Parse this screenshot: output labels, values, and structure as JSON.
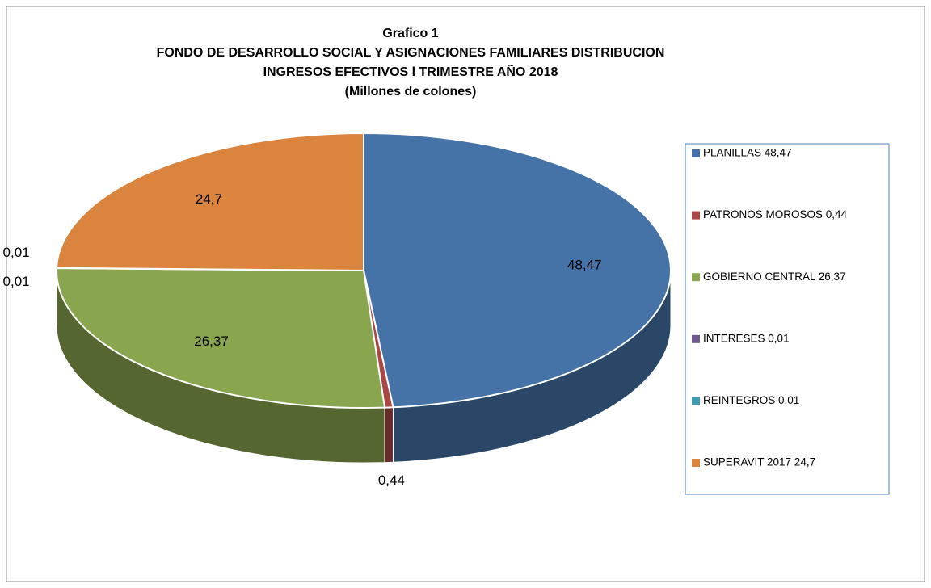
{
  "chart_data": {
    "type": "pie",
    "title": [
      "Grafico 1",
      "FONDO DE DESARROLLO SOCIAL Y ASIGNACIONES FAMILIARES DISTRIBUCION",
      "INGRESOS EFECTIVOS  l TRIMESTRE  AÑO 2018",
      "(Millones de colones)"
    ],
    "categories": [
      "PLANILLAS 48,47",
      "PATRONOS MOROSOS 0,44",
      "GOBIERNO CENTRAL 26,37",
      "INTERESES 0,01",
      "REINTEGROS 0,01",
      "SUPERAVIT 2017 24,7"
    ],
    "values": [
      48.47,
      0.44,
      26.37,
      0.01,
      0.01,
      24.7
    ],
    "value_labels": [
      "48,47",
      "0,44",
      "26,37",
      "0,01",
      "0,01",
      "24,7"
    ],
    "colors": [
      "#4572a7",
      "#aa4643",
      "#89a54e",
      "#71588f",
      "#4198af",
      "#db843d"
    ],
    "legend": "right"
  }
}
